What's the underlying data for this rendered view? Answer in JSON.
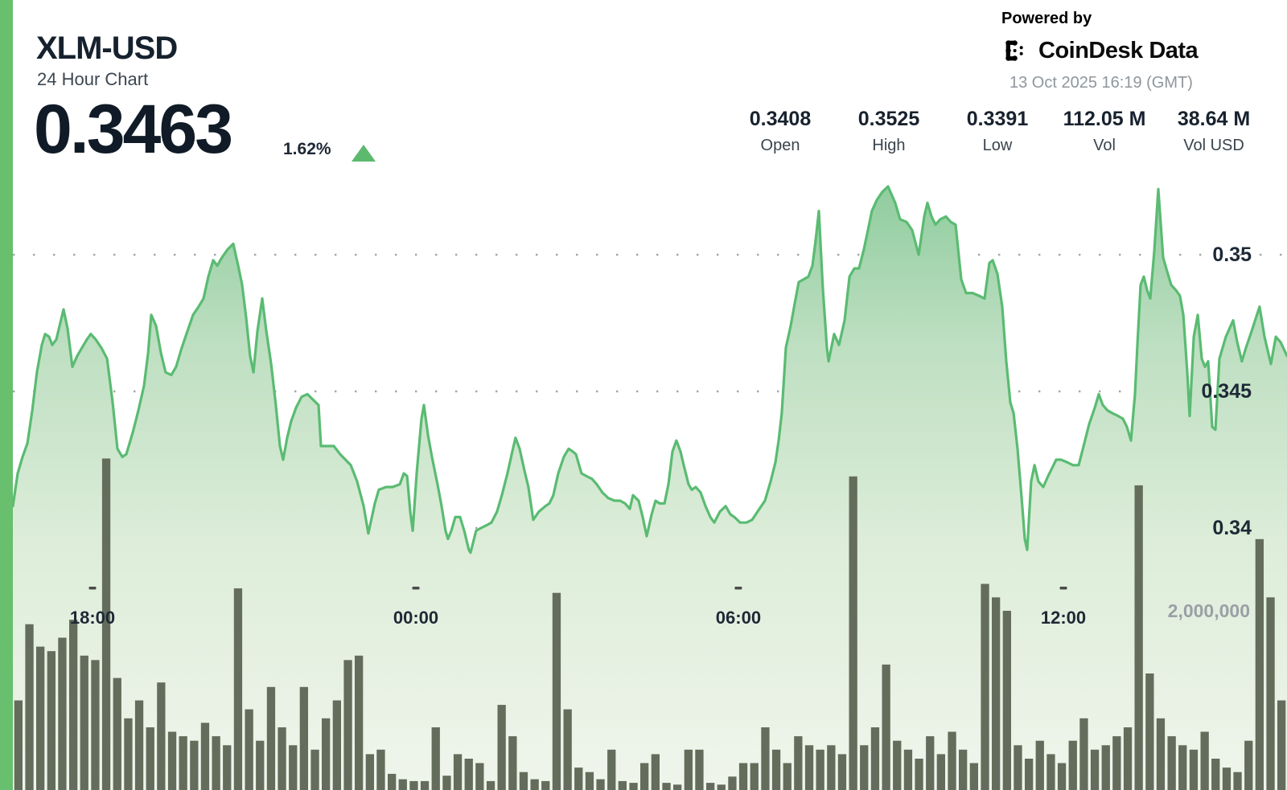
{
  "header": {
    "title": "XLM-USD",
    "subtitle": "24 Hour Chart",
    "price": "0.3463",
    "change_pct": "1.62%",
    "change_dir": "up"
  },
  "powered_by": {
    "label": "Powered by",
    "brand": "CoinDesk Data",
    "timestamp": "13 Oct 2025 16:19 (GMT)"
  },
  "stats": [
    {
      "value": "0.3408",
      "label": "Open"
    },
    {
      "value": "0.3525",
      "label": "High"
    },
    {
      "value": "0.3391",
      "label": "Low"
    },
    {
      "value": "112.05 M",
      "label": "Vol"
    },
    {
      "value": "38.64 M",
      "label": "Vol USD"
    }
  ],
  "chart_data": {
    "type": "area",
    "title": "XLM-USD 24 Hour Chart",
    "subcharts": "price area line with volume bars overlay",
    "grid": "dotted horizontal gridlines",
    "y_axis_price": {
      "unit": "USD",
      "gridlines": [
        0.35,
        0.345,
        0.34
      ],
      "labels": [
        "0.35",
        "0.345",
        "0.34"
      ],
      "open": 0.3408,
      "high": 0.3525,
      "low": 0.3391,
      "last": 0.3463
    },
    "y_axis_volume": {
      "gridline_value_millions": 2,
      "label": "2,000,000"
    },
    "x_axis": {
      "labels": [
        "18:00",
        "00:00",
        "06:00",
        "12:00"
      ],
      "fractions": [
        0.0625,
        0.3163,
        0.5694,
        0.8245
      ],
      "span": "24 hours ending 13 Oct 2025 16:19 GMT"
    },
    "price_series": [
      [
        0,
        0.3408
      ],
      [
        0.0038,
        0.342
      ],
      [
        0.0076,
        0.3426
      ],
      [
        0.0114,
        0.3431
      ],
      [
        0.0152,
        0.3443
      ],
      [
        0.0189,
        0.3457
      ],
      [
        0.0227,
        0.3467
      ],
      [
        0.0253,
        0.3471
      ],
      [
        0.0284,
        0.347
      ],
      [
        0.0309,
        0.3467
      ],
      [
        0.0341,
        0.3469
      ],
      [
        0.0372,
        0.3475
      ],
      [
        0.0398,
        0.348
      ],
      [
        0.0429,
        0.3473
      ],
      [
        0.0467,
        0.3459
      ],
      [
        0.0505,
        0.3463
      ],
      [
        0.0543,
        0.3466
      ],
      [
        0.0581,
        0.3469
      ],
      [
        0.0612,
        0.3471
      ],
      [
        0.065,
        0.3469
      ],
      [
        0.0694,
        0.3466
      ],
      [
        0.0739,
        0.3462
      ],
      [
        0.0783,
        0.3446
      ],
      [
        0.0821,
        0.3429
      ],
      [
        0.0859,
        0.3426
      ],
      [
        0.089,
        0.3427
      ],
      [
        0.0941,
        0.3435
      ],
      [
        0.0985,
        0.3443
      ],
      [
        0.1029,
        0.3452
      ],
      [
        0.1061,
        0.3464
      ],
      [
        0.1086,
        0.3478
      ],
      [
        0.1124,
        0.3474
      ],
      [
        0.1162,
        0.3464
      ],
      [
        0.1199,
        0.3457
      ],
      [
        0.1244,
        0.3456
      ],
      [
        0.1281,
        0.3459
      ],
      [
        0.1326,
        0.3466
      ],
      [
        0.137,
        0.3472
      ],
      [
        0.1414,
        0.3478
      ],
      [
        0.1458,
        0.3481
      ],
      [
        0.1496,
        0.3484
      ],
      [
        0.1534,
        0.3492
      ],
      [
        0.1572,
        0.3498
      ],
      [
        0.1604,
        0.3496
      ],
      [
        0.1641,
        0.3499
      ],
      [
        0.1686,
        0.3502
      ],
      [
        0.173,
        0.3504
      ],
      [
        0.1768,
        0.3496
      ],
      [
        0.1799,
        0.3489
      ],
      [
        0.1831,
        0.3477
      ],
      [
        0.1862,
        0.3463
      ],
      [
        0.1888,
        0.3457
      ],
      [
        0.1919,
        0.3472
      ],
      [
        0.1957,
        0.3484
      ],
      [
        0.1989,
        0.3472
      ],
      [
        0.2027,
        0.346
      ],
      [
        0.2064,
        0.3445
      ],
      [
        0.2096,
        0.343
      ],
      [
        0.2121,
        0.3425
      ],
      [
        0.2153,
        0.3433
      ],
      [
        0.2184,
        0.3439
      ],
      [
        0.2222,
        0.3444
      ],
      [
        0.2266,
        0.3448
      ],
      [
        0.2311,
        0.3449
      ],
      [
        0.2355,
        0.3447
      ],
      [
        0.2399,
        0.3445
      ],
      [
        0.2418,
        0.343
      ],
      [
        0.2487,
        0.343
      ],
      [
        0.2519,
        0.343
      ],
      [
        0.2569,
        0.3427
      ],
      [
        0.2652,
        0.3423
      ],
      [
        0.2702,
        0.3417
      ],
      [
        0.2753,
        0.3408
      ],
      [
        0.279,
        0.3398
      ],
      [
        0.2841,
        0.3409
      ],
      [
        0.2872,
        0.3414
      ],
      [
        0.2929,
        0.3415
      ],
      [
        0.298,
        0.3415
      ],
      [
        0.3037,
        0.3416
      ],
      [
        0.3068,
        0.342
      ],
      [
        0.3094,
        0.3419
      ],
      [
        0.3119,
        0.3406
      ],
      [
        0.3138,
        0.3399
      ],
      [
        0.3169,
        0.342
      ],
      [
        0.3207,
        0.344
      ],
      [
        0.3226,
        0.3445
      ],
      [
        0.3258,
        0.3434
      ],
      [
        0.3289,
        0.3426
      ],
      [
        0.3333,
        0.3416
      ],
      [
        0.3365,
        0.3408
      ],
      [
        0.3396,
        0.3399
      ],
      [
        0.3415,
        0.3396
      ],
      [
        0.3441,
        0.3399
      ],
      [
        0.3472,
        0.3404
      ],
      [
        0.351,
        0.3404
      ],
      [
        0.3542,
        0.3399
      ],
      [
        0.3579,
        0.3392
      ],
      [
        0.3592,
        0.3391
      ],
      [
        0.3636,
        0.3399
      ],
      [
        0.3674,
        0.34
      ],
      [
        0.3718,
        0.3401
      ],
      [
        0.3756,
        0.3402
      ],
      [
        0.38,
        0.3406
      ],
      [
        0.3838,
        0.3412
      ],
      [
        0.3882,
        0.342
      ],
      [
        0.392,
        0.3428
      ],
      [
        0.3945,
        0.3433
      ],
      [
        0.3977,
        0.3429
      ],
      [
        0.4015,
        0.3421
      ],
      [
        0.4046,
        0.3415
      ],
      [
        0.4084,
        0.3403
      ],
      [
        0.4129,
        0.3406
      ],
      [
        0.4179,
        0.3408
      ],
      [
        0.4211,
        0.3409
      ],
      [
        0.4242,
        0.3412
      ],
      [
        0.428,
        0.342
      ],
      [
        0.4324,
        0.3426
      ],
      [
        0.4362,
        0.3429
      ],
      [
        0.4394,
        0.3428
      ],
      [
        0.4419,
        0.3427
      ],
      [
        0.4463,
        0.342
      ],
      [
        0.4501,
        0.3419
      ],
      [
        0.4545,
        0.3418
      ],
      [
        0.4583,
        0.3416
      ],
      [
        0.4627,
        0.3413
      ],
      [
        0.4672,
        0.3411
      ],
      [
        0.4722,
        0.341
      ],
      [
        0.4766,
        0.341
      ],
      [
        0.4804,
        0.3409
      ],
      [
        0.4842,
        0.3407
      ],
      [
        0.4867,
        0.3412
      ],
      [
        0.4911,
        0.341
      ],
      [
        0.4943,
        0.3404
      ],
      [
        0.4975,
        0.3397
      ],
      [
        0.5013,
        0.3405
      ],
      [
        0.5044,
        0.341
      ],
      [
        0.5076,
        0.3409
      ],
      [
        0.5114,
        0.3409
      ],
      [
        0.5145,
        0.3416
      ],
      [
        0.5177,
        0.3428
      ],
      [
        0.5208,
        0.3432
      ],
      [
        0.524,
        0.3428
      ],
      [
        0.5265,
        0.3423
      ],
      [
        0.5303,
        0.3416
      ],
      [
        0.5328,
        0.3414
      ],
      [
        0.536,
        0.3415
      ],
      [
        0.5398,
        0.3413
      ],
      [
        0.5436,
        0.3408
      ],
      [
        0.5474,
        0.3404
      ],
      [
        0.5505,
        0.3402
      ],
      [
        0.5549,
        0.3406
      ],
      [
        0.5594,
        0.3408
      ],
      [
        0.5631,
        0.3405
      ],
      [
        0.5663,
        0.3404
      ],
      [
        0.5707,
        0.3402
      ],
      [
        0.5758,
        0.3402
      ],
      [
        0.5802,
        0.3403
      ],
      [
        0.5859,
        0.3407
      ],
      [
        0.5903,
        0.341
      ],
      [
        0.5947,
        0.3417
      ],
      [
        0.5985,
        0.3424
      ],
      [
        0.601,
        0.3432
      ],
      [
        0.6035,
        0.3442
      ],
      [
        0.6067,
        0.3466
      ],
      [
        0.6105,
        0.3474
      ],
      [
        0.6136,
        0.3482
      ],
      [
        0.6168,
        0.349
      ],
      [
        0.6206,
        0.3491
      ],
      [
        0.6244,
        0.3492
      ],
      [
        0.6275,
        0.3496
      ],
      [
        0.63,
        0.3505
      ],
      [
        0.6326,
        0.3516
      ],
      [
        0.6357,
        0.3488
      ],
      [
        0.6389,
        0.3466
      ],
      [
        0.6402,
        0.3461
      ],
      [
        0.6446,
        0.3471
      ],
      [
        0.6484,
        0.3467
      ],
      [
        0.6528,
        0.3476
      ],
      [
        0.6566,
        0.3492
      ],
      [
        0.6604,
        0.3495
      ],
      [
        0.6641,
        0.3495
      ],
      [
        0.6679,
        0.3502
      ],
      [
        0.6711,
        0.3509
      ],
      [
        0.6742,
        0.3516
      ],
      [
        0.678,
        0.352
      ],
      [
        0.6824,
        0.3523
      ],
      [
        0.6869,
        0.3525
      ],
      [
        0.6925,
        0.3519
      ],
      [
        0.6963,
        0.3513
      ],
      [
        0.7014,
        0.3512
      ],
      [
        0.7058,
        0.3509
      ],
      [
        0.7109,
        0.35
      ],
      [
        0.7153,
        0.3514
      ],
      [
        0.7178,
        0.3519
      ],
      [
        0.721,
        0.3514
      ],
      [
        0.7241,
        0.3511
      ],
      [
        0.7279,
        0.3513
      ],
      [
        0.7323,
        0.3514
      ],
      [
        0.7361,
        0.3512
      ],
      [
        0.7399,
        0.3511
      ],
      [
        0.7443,
        0.3491
      ],
      [
        0.7481,
        0.3486
      ],
      [
        0.7532,
        0.3486
      ],
      [
        0.7582,
        0.3485
      ],
      [
        0.7626,
        0.3484
      ],
      [
        0.7664,
        0.3497
      ],
      [
        0.769,
        0.3498
      ],
      [
        0.7727,
        0.3493
      ],
      [
        0.7765,
        0.3481
      ],
      [
        0.7797,
        0.3461
      ],
      [
        0.7828,
        0.3446
      ],
      [
        0.7854,
        0.3442
      ],
      [
        0.7885,
        0.3429
      ],
      [
        0.7917,
        0.3411
      ],
      [
        0.7942,
        0.3396
      ],
      [
        0.7961,
        0.3392
      ],
      [
        0.7992,
        0.3417
      ],
      [
        0.8018,
        0.3423
      ],
      [
        0.8049,
        0.3417
      ],
      [
        0.8087,
        0.3415
      ],
      [
        0.8125,
        0.3419
      ],
      [
        0.8157,
        0.3422
      ],
      [
        0.8188,
        0.3425
      ],
      [
        0.8226,
        0.3425
      ],
      [
        0.8277,
        0.3424
      ],
      [
        0.8321,
        0.3423
      ],
      [
        0.8365,
        0.3423
      ],
      [
        0.8409,
        0.3431
      ],
      [
        0.8447,
        0.3438
      ],
      [
        0.8491,
        0.3444
      ],
      [
        0.8523,
        0.3449
      ],
      [
        0.8554,
        0.3445
      ],
      [
        0.8592,
        0.3443
      ],
      [
        0.863,
        0.3442
      ],
      [
        0.8674,
        0.3441
      ],
      [
        0.8712,
        0.344
      ],
      [
        0.8744,
        0.3437
      ],
      [
        0.8775,
        0.3432
      ],
      [
        0.8807,
        0.3449
      ],
      [
        0.8826,
        0.3467
      ],
      [
        0.8851,
        0.3489
      ],
      [
        0.8876,
        0.3492
      ],
      [
        0.8902,
        0.3487
      ],
      [
        0.8927,
        0.3484
      ],
      [
        0.8958,
        0.3501
      ],
      [
        0.899,
        0.3524
      ],
      [
        0.9028,
        0.3499
      ],
      [
        0.9059,
        0.3494
      ],
      [
        0.9091,
        0.3489
      ],
      [
        0.9129,
        0.3487
      ],
      [
        0.916,
        0.3485
      ],
      [
        0.9186,
        0.3478
      ],
      [
        0.9217,
        0.3457
      ],
      [
        0.9236,
        0.3441
      ],
      [
        0.9268,
        0.347
      ],
      [
        0.93,
        0.3478
      ],
      [
        0.9331,
        0.3462
      ],
      [
        0.9356,
        0.3459
      ],
      [
        0.9381,
        0.3461
      ],
      [
        0.9413,
        0.3437
      ],
      [
        0.9438,
        0.3436
      ],
      [
        0.947,
        0.3462
      ],
      [
        0.952,
        0.347
      ],
      [
        0.9577,
        0.3476
      ],
      [
        0.9609,
        0.3468
      ],
      [
        0.9646,
        0.3461
      ],
      [
        0.9678,
        0.3466
      ],
      [
        0.9722,
        0.3472
      ],
      [
        0.9785,
        0.3481
      ],
      [
        0.9823,
        0.347
      ],
      [
        0.9874,
        0.346
      ],
      [
        0.9912,
        0.347
      ],
      [
        0.995,
        0.3468
      ],
      [
        1,
        0.3463
      ]
    ],
    "volume_series_millions": [
      1.0,
      1.85,
      1.6,
      1.55,
      1.7,
      1.9,
      1.5,
      1.45,
      3.7,
      1.25,
      0.8,
      1.0,
      0.7,
      1.2,
      0.65,
      0.6,
      0.55,
      0.75,
      0.6,
      0.5,
      2.25,
      0.9,
      0.55,
      1.15,
      0.7,
      0.5,
      1.15,
      0.45,
      0.8,
      1.0,
      1.45,
      1.5,
      0.4,
      0.45,
      0.18,
      0.12,
      0.1,
      0.1,
      0.7,
      0.16,
      0.4,
      0.35,
      0.3,
      0.1,
      0.95,
      0.6,
      0.2,
      0.12,
      0.1,
      2.2,
      0.9,
      0.25,
      0.2,
      0.12,
      0.45,
      0.1,
      0.08,
      0.3,
      0.4,
      0.08,
      0.06,
      0.45,
      0.45,
      0.08,
      0.06,
      0.15,
      0.3,
      0.3,
      0.7,
      0.45,
      0.3,
      0.6,
      0.5,
      0.45,
      0.5,
      0.4,
      3.5,
      0.5,
      0.7,
      1.4,
      0.55,
      0.45,
      0.35,
      0.6,
      0.4,
      0.65,
      0.45,
      0.3,
      2.3,
      2.15,
      2.0,
      0.5,
      0.35,
      0.55,
      0.4,
      0.3,
      0.55,
      0.8,
      0.45,
      0.5,
      0.6,
      0.7,
      3.4,
      1.3,
      0.8,
      0.6,
      0.5,
      0.45,
      0.65,
      0.35,
      0.25,
      0.2,
      0.55,
      2.8,
      2.15,
      1.0
    ],
    "colors": {
      "line": "#5abb72",
      "area_top": "#8ccb9b",
      "area_mid": "#cde7cf",
      "area_bottom": "#f0f5ec",
      "volume_bar": "#646d5c",
      "sidebar_accent": "#68bf6d",
      "up_triangle": "#5cb96e",
      "grid_dot": "#909090",
      "axis_tick": "#4a4a4a",
      "label_dark": "#1e2936",
      "label_gray": "#9aa0a5"
    }
  }
}
